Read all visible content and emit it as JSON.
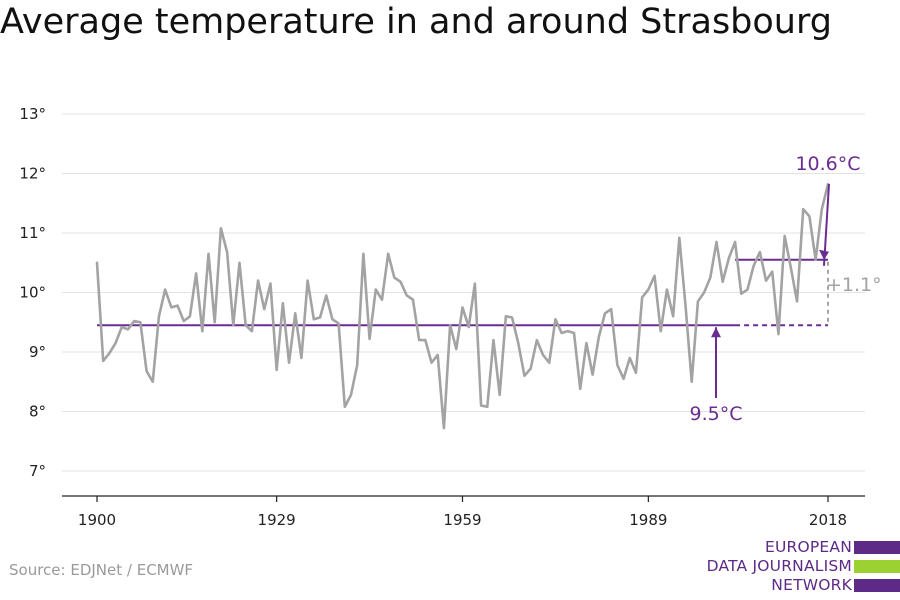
{
  "title": "Average temperature in and around Strasbourg",
  "source": "Source: EDJNet / ECMWF",
  "logo": {
    "lines": [
      "EUROPEAN",
      "DATA JOURNALISM",
      "NETWORK"
    ],
    "colors": [
      "#5e2a87",
      "#9bd232",
      "#5e2a87"
    ]
  },
  "chart_data": {
    "type": "line",
    "title": "Average temperature in and around Strasbourg",
    "xlabel": "",
    "ylabel": "",
    "xlim": [
      1900,
      2018
    ],
    "ylim": [
      7,
      13
    ],
    "grid": true,
    "y_ticks": [
      {
        "value": 7,
        "label": "7°"
      },
      {
        "value": 8,
        "label": "8°"
      },
      {
        "value": 9,
        "label": "9°"
      },
      {
        "value": 10,
        "label": "10°"
      },
      {
        "value": 11,
        "label": "11°"
      },
      {
        "value": 12,
        "label": "12°"
      },
      {
        "value": 13,
        "label": "13°"
      }
    ],
    "x_ticks": [
      {
        "value": 1900,
        "label": "1900"
      },
      {
        "value": 1929,
        "label": "1929"
      },
      {
        "value": 1959,
        "label": "1959"
      },
      {
        "value": 1989,
        "label": "1989"
      },
      {
        "value": 2018,
        "label": "2018"
      }
    ],
    "series_color": "#a3a3a3",
    "accent_color": "#6b2c91",
    "diff_color": "#a3a3a3",
    "series": [
      {
        "x_start": 1900,
        "values": [
          10.5,
          8.85,
          8.98,
          9.15,
          9.42,
          9.38,
          9.52,
          9.5,
          8.68,
          8.5,
          9.6,
          10.05,
          9.75,
          9.78,
          9.52,
          9.6,
          10.32,
          9.35,
          10.65,
          9.5,
          11.08,
          10.68,
          9.45,
          10.5,
          9.45,
          9.35,
          10.2,
          9.72,
          10.15,
          8.7,
          9.82,
          8.82,
          9.65,
          8.9,
          10.2,
          9.55,
          9.58,
          9.95,
          9.55,
          9.48,
          8.08,
          8.28,
          8.78,
          10.65,
          9.22,
          10.05,
          9.88,
          10.65,
          10.25,
          10.18,
          9.95,
          9.88,
          9.2,
          9.2,
          8.82,
          8.95,
          7.72,
          9.45,
          9.05,
          9.75,
          9.42,
          10.15,
          8.1,
          8.08,
          9.2,
          8.28,
          9.6,
          9.58,
          9.15,
          8.6,
          8.72,
          9.2,
          8.95,
          8.82,
          9.55,
          9.32,
          9.35,
          9.32,
          8.38,
          9.15,
          8.62,
          9.25,
          9.65,
          9.72,
          8.78,
          8.55,
          8.9,
          8.65,
          9.92,
          10.05,
          10.28,
          9.35,
          10.05,
          9.6,
          10.92,
          9.78,
          8.5,
          9.85,
          10.0,
          10.25,
          10.85,
          10.18,
          10.58,
          10.85,
          9.98,
          10.05,
          10.45,
          10.68,
          10.2,
          10.35,
          9.3,
          10.95,
          10.42,
          9.85,
          11.4,
          11.28,
          10.55,
          11.4,
          11.82
        ]
      }
    ],
    "baseline": {
      "value": 9.45,
      "x_from": 1900,
      "x_to": 2003,
      "dashed_to": 2018,
      "label": "9.5°C"
    },
    "recent_mean": {
      "value": 10.55,
      "x_from": 2003,
      "x_to": 2018,
      "label": "10.6°C"
    },
    "difference_label": "+1.1°"
  }
}
